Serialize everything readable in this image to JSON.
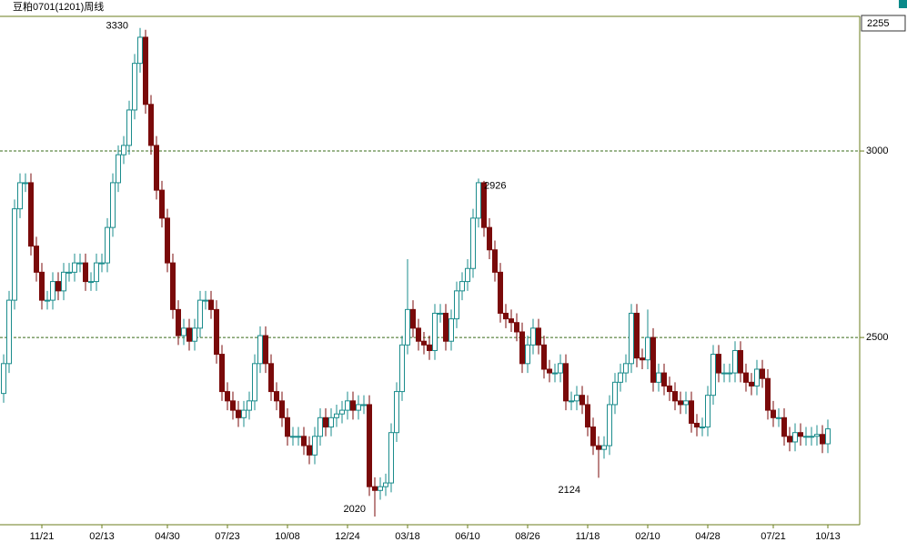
{
  "chart_data": {
    "type": "candlestick",
    "title": "豆粕0701(1201)周线",
    "categories": [
      null,
      null,
      null,
      null,
      null,
      null,
      null,
      "11/21",
      null,
      null,
      null,
      null,
      null,
      null,
      null,
      null,
      null,
      null,
      "02/13",
      null,
      null,
      null,
      null,
      null,
      null,
      null,
      null,
      null,
      null,
      null,
      "04/30",
      null,
      null,
      null,
      null,
      null,
      null,
      null,
      null,
      null,
      null,
      "07/23",
      null,
      null,
      null,
      null,
      null,
      null,
      null,
      null,
      null,
      null,
      "10/08",
      null,
      null,
      null,
      null,
      null,
      null,
      null,
      null,
      null,
      null,
      "12/24",
      null,
      null,
      null,
      null,
      null,
      null,
      null,
      null,
      null,
      null,
      "03/18",
      null,
      null,
      null,
      null,
      null,
      null,
      null,
      null,
      null,
      null,
      "06/10",
      null,
      null,
      null,
      null,
      null,
      null,
      null,
      null,
      null,
      null,
      "08/26",
      null,
      null,
      null,
      null,
      null,
      null,
      null,
      null,
      null,
      null,
      "11/18",
      null,
      null,
      null,
      null,
      null,
      null,
      null,
      null,
      null,
      null,
      "02/10",
      null,
      null,
      null,
      null,
      null,
      null,
      null,
      null,
      null,
      null,
      "04/28",
      null,
      null,
      null,
      null,
      null,
      null,
      null,
      null,
      null,
      null,
      null,
      "07/21",
      null,
      null,
      null,
      null,
      null,
      null,
      null,
      null,
      null,
      "10/13"
    ],
    "open": [
      2350,
      2430,
      2600,
      2845,
      2915,
      2915,
      2745,
      2675,
      2600,
      2600,
      2650,
      2625,
      2675,
      2675,
      2700,
      2700,
      2650,
      2650,
      2700,
      2700,
      2795,
      2915,
      2990,
      3015,
      3110,
      3235,
      3305,
      3125,
      3015,
      2895,
      2820,
      2700,
      2575,
      2505,
      2525,
      2490,
      2525,
      2600,
      2600,
      2575,
      2455,
      2355,
      2330,
      2305,
      2285,
      2305,
      2330,
      2430,
      2505,
      2430,
      2355,
      2330,
      2285,
      2235,
      2235,
      2235,
      2210,
      2185,
      2235,
      2285,
      2260,
      2285,
      2295,
      2305,
      2330,
      2305,
      2320,
      2320,
      2100,
      2090,
      2100,
      2110,
      2245,
      2355,
      2480,
      2575,
      2525,
      2490,
      2480,
      2465,
      2565,
      2565,
      2490,
      2550,
      2625,
      2650,
      2685,
      2820,
      2915,
      2795,
      2735,
      2675,
      2565,
      2550,
      2540,
      2515,
      2430,
      2480,
      2525,
      2480,
      2415,
      2405,
      2405,
      2430,
      2330,
      2330,
      2345,
      2320,
      2260,
      2210,
      2200,
      2210,
      2320,
      2380,
      2405,
      2430,
      2565,
      2445,
      2440,
      2500,
      2380,
      2405,
      2370,
      2355,
      2330,
      2320,
      2330,
      2270,
      2260,
      2260,
      2345,
      2455,
      2405,
      2405,
      2405,
      2465,
      2405,
      2380,
      2370,
      2415,
      2390,
      2305,
      2285,
      2285,
      2235,
      2220,
      2245,
      2235,
      2235,
      2235,
      2240,
      2215
    ],
    "high": [
      2455,
      2625,
      2870,
      2940,
      2940,
      2940,
      2770,
      2700,
      2625,
      2675,
      2675,
      2700,
      2700,
      2725,
      2725,
      2725,
      2675,
      2725,
      2725,
      2820,
      2940,
      3015,
      3040,
      3135,
      3260,
      3330,
      3325,
      3150,
      3040,
      2920,
      2845,
      2725,
      2600,
      2550,
      2550,
      2550,
      2625,
      2625,
      2625,
      2600,
      2480,
      2380,
      2355,
      2330,
      2330,
      2355,
      2455,
      2530,
      2530,
      2455,
      2380,
      2355,
      2310,
      2260,
      2260,
      2260,
      2235,
      2260,
      2310,
      2310,
      2310,
      2320,
      2330,
      2355,
      2355,
      2345,
      2345,
      2345,
      2125,
      2125,
      2135,
      2270,
      2380,
      2505,
      2710,
      2600,
      2550,
      2515,
      2505,
      2590,
      2590,
      2590,
      2575,
      2650,
      2675,
      2710,
      2845,
      2926,
      2920,
      2820,
      2760,
      2700,
      2590,
      2575,
      2565,
      2540,
      2505,
      2550,
      2550,
      2505,
      2440,
      2430,
      2455,
      2455,
      2355,
      2370,
      2370,
      2345,
      2285,
      2235,
      2235,
      2345,
      2405,
      2430,
      2455,
      2590,
      2590,
      2470,
      2575,
      2525,
      2430,
      2430,
      2395,
      2380,
      2355,
      2355,
      2355,
      2295,
      2285,
      2370,
      2480,
      2480,
      2430,
      2430,
      2490,
      2490,
      2430,
      2405,
      2440,
      2440,
      2415,
      2330,
      2310,
      2310,
      2260,
      2270,
      2270,
      2260,
      2260,
      2265,
      2265,
      2280
    ],
    "low": [
      2325,
      2405,
      2575,
      2820,
      2890,
      2720,
      2650,
      2575,
      2575,
      2575,
      2600,
      2600,
      2650,
      2650,
      2675,
      2625,
      2625,
      2625,
      2675,
      2675,
      2770,
      2890,
      2965,
      2990,
      3085,
      3210,
      3100,
      2990,
      2870,
      2795,
      2675,
      2550,
      2480,
      2480,
      2465,
      2465,
      2500,
      2575,
      2550,
      2430,
      2330,
      2305,
      2280,
      2260,
      2260,
      2280,
      2305,
      2405,
      2405,
      2330,
      2305,
      2260,
      2210,
      2210,
      2210,
      2185,
      2160,
      2160,
      2210,
      2235,
      2235,
      2260,
      2270,
      2280,
      2280,
      2280,
      2295,
      2075,
      2020,
      2065,
      2075,
      2085,
      2220,
      2330,
      2455,
      2500,
      2465,
      2455,
      2440,
      2440,
      2540,
      2465,
      2465,
      2525,
      2600,
      2625,
      2660,
      2795,
      2770,
      2710,
      2650,
      2540,
      2525,
      2515,
      2490,
      2405,
      2405,
      2455,
      2455,
      2390,
      2380,
      2380,
      2380,
      2305,
      2305,
      2305,
      2295,
      2235,
      2185,
      2124,
      2175,
      2185,
      2295,
      2355,
      2380,
      2405,
      2420,
      2415,
      2415,
      2355,
      2355,
      2345,
      2330,
      2305,
      2295,
      2295,
      2245,
      2235,
      2235,
      2235,
      2320,
      2380,
      2380,
      2380,
      2380,
      2380,
      2355,
      2345,
      2345,
      2365,
      2280,
      2260,
      2260,
      2210,
      2195,
      2195,
      2210,
      2210,
      2210,
      2210,
      2190,
      2190
    ],
    "close": [
      2430,
      2600,
      2845,
      2915,
      2915,
      2745,
      2675,
      2600,
      2600,
      2650,
      2625,
      2675,
      2675,
      2700,
      2700,
      2650,
      2650,
      2700,
      2700,
      2795,
      2915,
      2990,
      3015,
      3110,
      3235,
      3305,
      3125,
      3015,
      2895,
      2820,
      2700,
      2575,
      2505,
      2525,
      2490,
      2525,
      2600,
      2600,
      2575,
      2455,
      2355,
      2330,
      2305,
      2285,
      2305,
      2330,
      2430,
      2505,
      2430,
      2355,
      2330,
      2285,
      2235,
      2235,
      2235,
      2210,
      2185,
      2235,
      2285,
      2260,
      2285,
      2295,
      2305,
      2330,
      2305,
      2320,
      2320,
      2100,
      2090,
      2100,
      2110,
      2245,
      2355,
      2480,
      2575,
      2525,
      2490,
      2480,
      2465,
      2565,
      2565,
      2490,
      2550,
      2625,
      2650,
      2685,
      2820,
      2915,
      2795,
      2735,
      2675,
      2565,
      2550,
      2540,
      2515,
      2430,
      2480,
      2525,
      2480,
      2415,
      2405,
      2405,
      2430,
      2330,
      2330,
      2345,
      2320,
      2260,
      2210,
      2200,
      2210,
      2320,
      2380,
      2405,
      2430,
      2565,
      2445,
      2440,
      2500,
      2380,
      2405,
      2370,
      2355,
      2330,
      2320,
      2330,
      2270,
      2260,
      2260,
      2345,
      2455,
      2405,
      2405,
      2405,
      2465,
      2405,
      2380,
      2370,
      2415,
      2390,
      2305,
      2285,
      2285,
      2235,
      2220,
      2245,
      2235,
      2235,
      2235,
      2240,
      2215,
      2255
    ],
    "up_color": "#1b8c8c",
    "down_color": "#7a0a0a",
    "ylim": [
      1998,
      3361
    ],
    "yticks": [
      2500,
      3000
    ],
    "grid": true
  }
}
